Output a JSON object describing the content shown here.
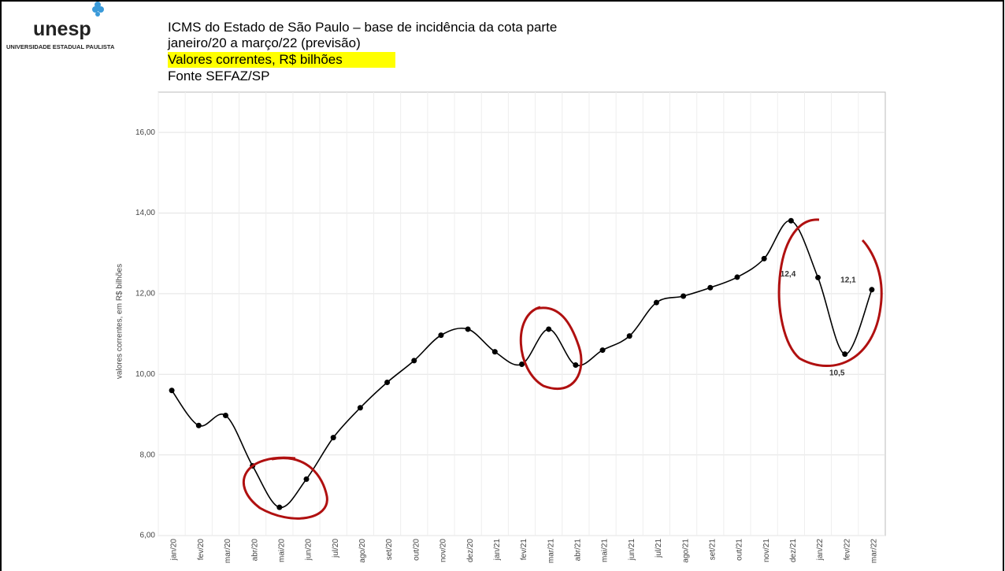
{
  "logo": {
    "name": "unesp",
    "subtitle": "UNIVERSIDADE ESTADUAL PAULISTA"
  },
  "chart_data": {
    "type": "line",
    "title": "ICMS do Estado de São Paulo – base de incidência da cota parte",
    "subtitle": "janeiro/20 a março/22 (previsão)",
    "unit_note": "Valores correntes, R$ bilhões",
    "source": "Fonte SEFAZ/SP",
    "y_label": "valores correntes, em R$ bilhões",
    "categories": [
      "jan/20",
      "fev/20",
      "mar/20",
      "abr/20",
      "mai/20",
      "jun/20",
      "jul/20",
      "ago/20",
      "set/20",
      "out/20",
      "nov/20",
      "dez/20",
      "jan/21",
      "fev/21",
      "mar/21",
      "abr/21",
      "mai/21",
      "jun/21",
      "jul/21",
      "ago/21",
      "set/21",
      "out/21",
      "nov/21",
      "dez/21",
      "jan/22",
      "fev/22",
      "mar/22"
    ],
    "values": [
      9.6,
      8.73,
      8.98,
      7.73,
      6.7,
      7.4,
      8.43,
      9.17,
      9.8,
      10.34,
      10.97,
      11.12,
      10.56,
      10.25,
      11.12,
      10.23,
      10.6,
      10.95,
      11.78,
      11.94,
      12.15,
      12.41,
      12.87,
      13.81,
      12.4,
      10.5,
      12.1
    ],
    "value_labels": [
      null,
      null,
      null,
      null,
      null,
      null,
      null,
      null,
      null,
      null,
      null,
      null,
      null,
      null,
      null,
      null,
      null,
      null,
      null,
      null,
      null,
      null,
      null,
      null,
      "12,4",
      "10,5",
      "12,1"
    ],
    "color": "#000000",
    "ylim": [
      6,
      17
    ],
    "yticks": [
      {
        "value": 6,
        "label": "6,00"
      },
      {
        "value": 8,
        "label": "8,00"
      },
      {
        "value": 10,
        "label": "10,00"
      },
      {
        "value": 12,
        "label": "12,00"
      },
      {
        "value": 14,
        "label": "14,00"
      },
      {
        "value": 16,
        "label": "16,00"
      }
    ],
    "grid": true
  }
}
